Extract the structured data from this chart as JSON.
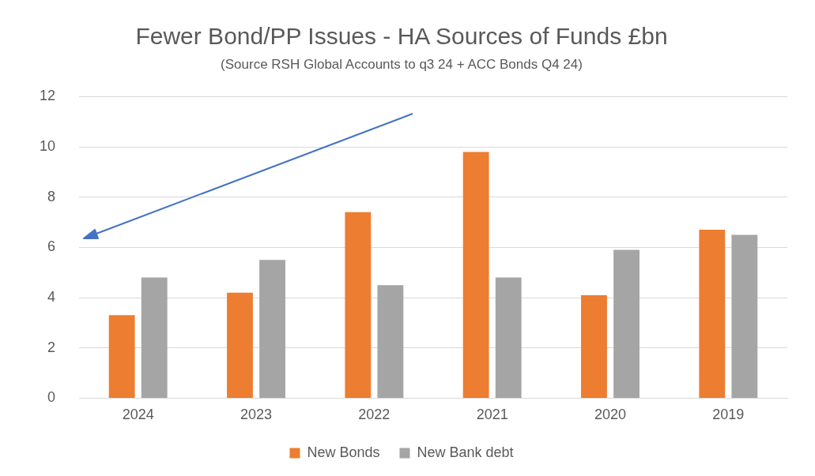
{
  "chart_data": {
    "type": "bar",
    "title": "Fewer Bond/PP Issues - HA Sources of Funds £bn",
    "subtitle": "(Source RSH Global Accounts to q3 24 + ACC Bonds Q4 24)",
    "categories": [
      "2024",
      "2023",
      "2022",
      "2021",
      "2020",
      "2019"
    ],
    "series": [
      {
        "name": "New Bonds",
        "color": "#ed7d31",
        "values": [
          3.3,
          4.2,
          7.4,
          9.8,
          4.1,
          6.7
        ]
      },
      {
        "name": "New Bank debt",
        "color": "#a5a5a5",
        "values": [
          4.8,
          5.5,
          4.5,
          4.8,
          5.9,
          6.5
        ]
      }
    ],
    "ylim": [
      0,
      12
    ],
    "yticks": [
      0,
      2,
      4,
      6,
      8,
      10,
      12
    ],
    "grid": "y",
    "legend": "bottom"
  }
}
